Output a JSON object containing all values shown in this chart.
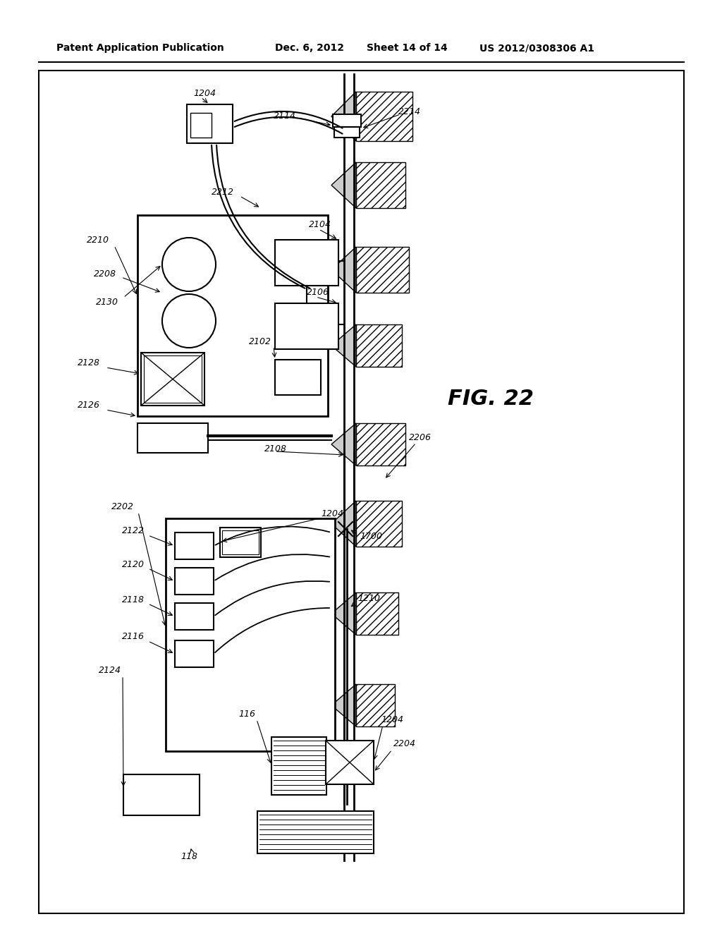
{
  "bg_color": "#ffffff",
  "border_color": "#000000",
  "header_text": "Patent Application Publication",
  "header_date": "Dec. 6, 2012",
  "header_sheet": "Sheet 14 of 14",
  "header_patent": "US 2012/0308306 A1",
  "fig_label": "FIG. 22",
  "labels": {
    "1204_top": "1204",
    "2114": "2114",
    "2214": "2214",
    "2212": "2212",
    "2130": "2130",
    "2104": "2104",
    "2208": "2208",
    "2106": "2106",
    "2210": "2210",
    "2128": "2128",
    "2102": "2102",
    "2126": "2126",
    "2206": "2206",
    "2108": "2108",
    "1204_mid": "1204",
    "2202": "2202",
    "2122": "2122",
    "2120": "2120",
    "2118": "2118",
    "2116": "2116",
    "2124": "2124",
    "116": "116",
    "1204_bot": "1204",
    "2204": "2204",
    "1700": "1700",
    "1210": "1210",
    "118": "118"
  }
}
